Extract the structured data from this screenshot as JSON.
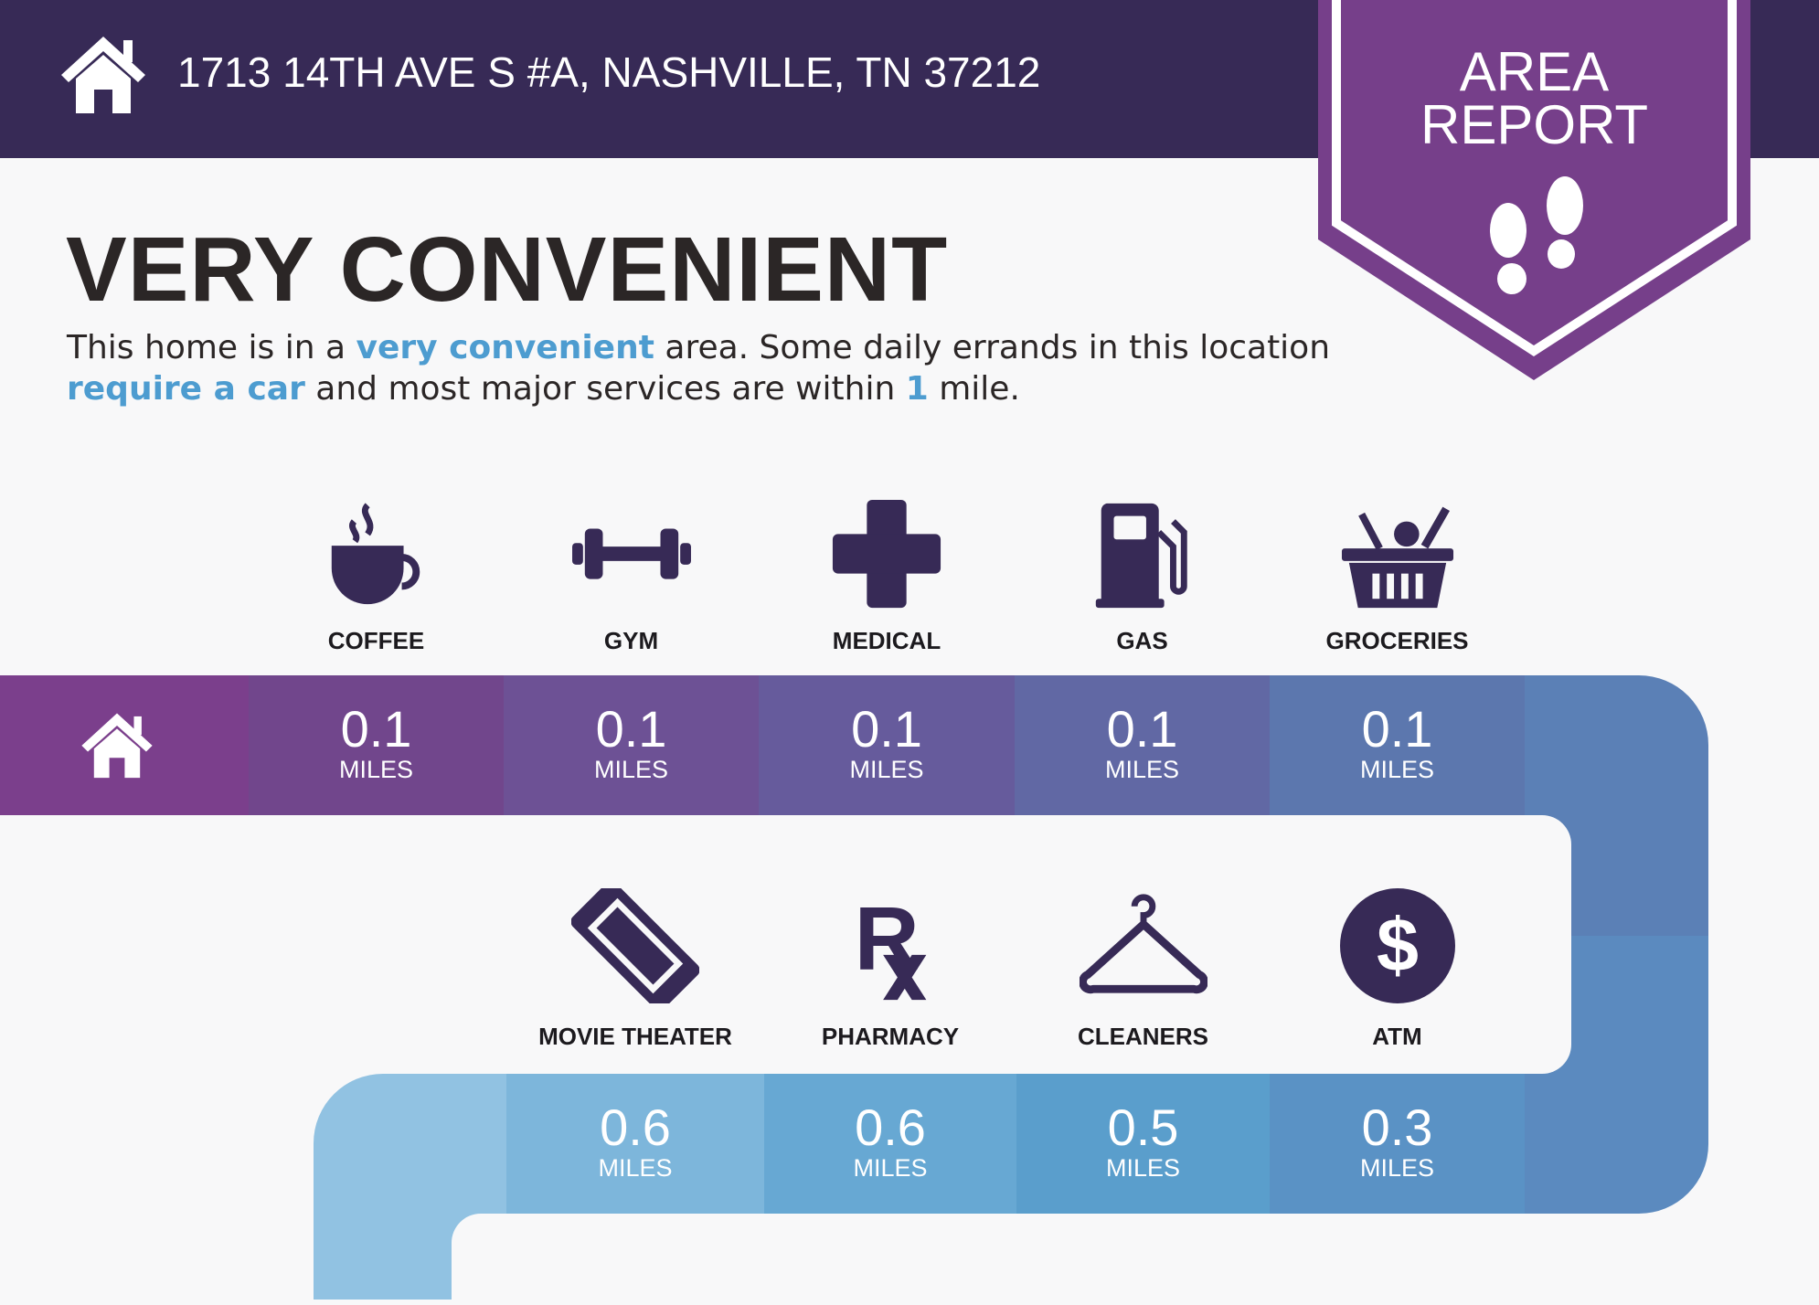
{
  "header": {
    "address": "1713 14TH AVE S #A, NASHVILLE, TN 37212",
    "icon": "home-icon"
  },
  "badge": {
    "line1": "AREA",
    "line2": "REPORT",
    "icon": "footprints-icon",
    "color": "#763f8a"
  },
  "title": "VERY CONVENIENT",
  "description": {
    "p1": "This home is in a ",
    "h1": "very convenient",
    "p2": " area. Some daily errands in this location ",
    "h2": "require a car",
    "p3": " and most major services are within ",
    "h3": "1",
    "p4": " mile."
  },
  "colors": {
    "header": "#372a56",
    "accent": "#4d9cd0",
    "icon": "#372a56"
  },
  "services_row1": [
    {
      "label": "COFFEE",
      "value": "0.1",
      "unit": "MILES",
      "icon": "coffee-cup-icon",
      "color": "#71468c"
    },
    {
      "label": "GYM",
      "value": "0.1",
      "unit": "MILES",
      "icon": "dumbbell-icon",
      "color": "#6d5195"
    },
    {
      "label": "MEDICAL",
      "value": "0.1",
      "unit": "MILES",
      "icon": "medical-cross-icon",
      "color": "#665b9c"
    },
    {
      "label": "GAS",
      "value": "0.1",
      "unit": "MILES",
      "icon": "gas-pump-icon",
      "color": "#6168a4"
    },
    {
      "label": "GROCERIES",
      "value": "0.1",
      "unit": "MILES",
      "icon": "grocery-basket-icon",
      "color": "#5c77ae"
    }
  ],
  "services_row2": [
    {
      "label": "MOVIE THEATER",
      "value": "0.6",
      "unit": "MILES",
      "icon": "ticket-icon",
      "color": "#7db6db"
    },
    {
      "label": "PHARMACY",
      "value": "0.6",
      "unit": "MILES",
      "icon": "rx-icon",
      "color": "#67a8d3"
    },
    {
      "label": "CLEANERS",
      "value": "0.5",
      "unit": "MILES",
      "icon": "hanger-icon",
      "color": "#5a9ecc"
    },
    {
      "label": "ATM",
      "value": "0.3",
      "unit": "MILES",
      "icon": "dollar-icon",
      "color": "#5a92c5"
    }
  ]
}
